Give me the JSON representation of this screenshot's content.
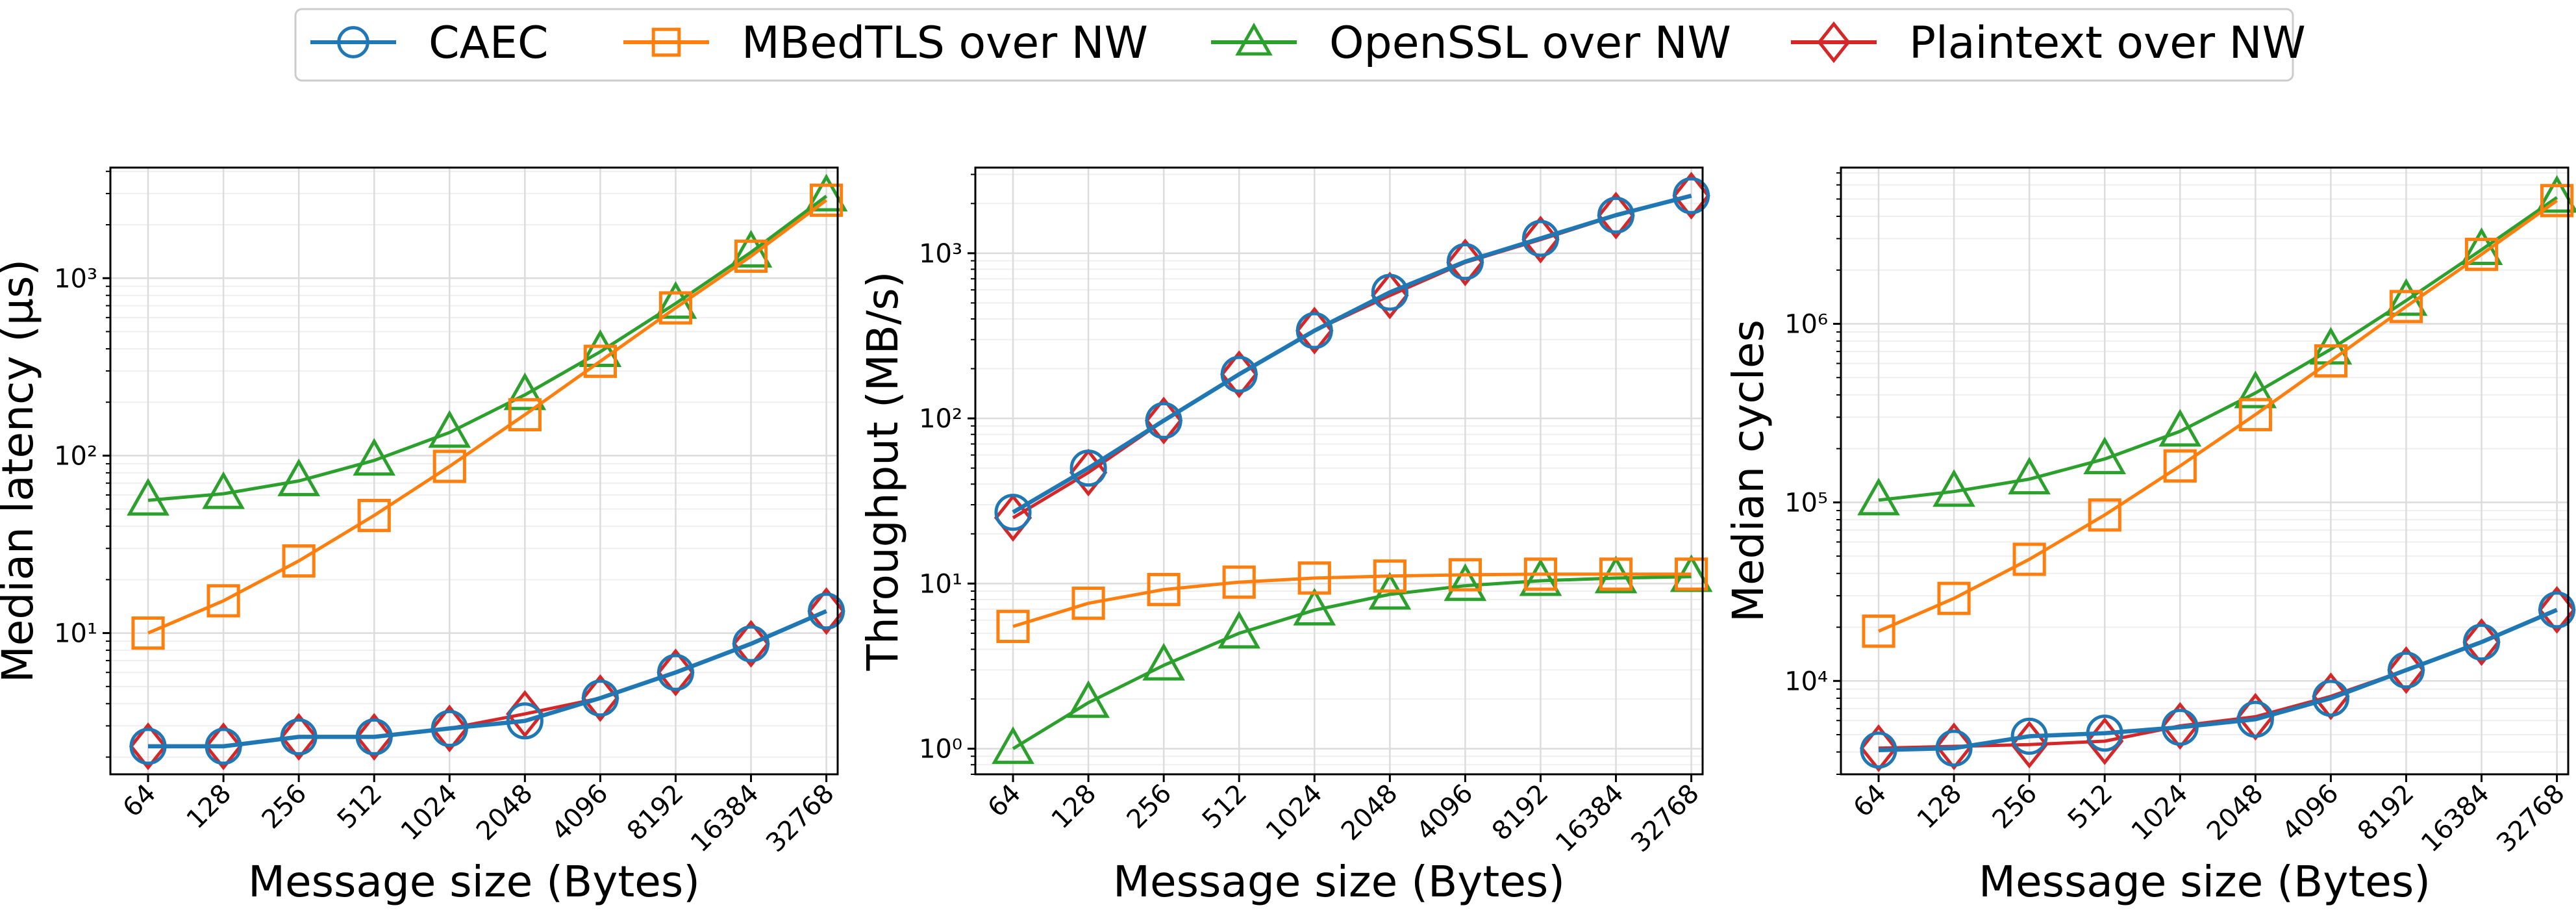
{
  "legend": {
    "entries": [
      {
        "label": "CAEC",
        "color": "#1f77b4",
        "marker": "circle"
      },
      {
        "label": "MBedTLS over NW",
        "color": "#ff7f0e",
        "marker": "square"
      },
      {
        "label": "OpenSSL over NW",
        "color": "#2ca02c",
        "marker": "triangle"
      },
      {
        "label": "Plaintext over NW",
        "color": "#d62728",
        "marker": "diamond"
      }
    ],
    "placement": "top-center"
  },
  "chart_data": [
    {
      "type": "line",
      "title": "",
      "xlabel": "Message size (Bytes)",
      "ylabel": "Median latency (µs)",
      "yscale": "log",
      "ylim": [
        1.6,
        4200
      ],
      "grid": true,
      "categories": [
        "64",
        "128",
        "256",
        "512",
        "1024",
        "2048",
        "4096",
        "8192",
        "16384",
        "32768"
      ],
      "yticks": [
        {
          "value": 10,
          "label": "10¹"
        },
        {
          "value": 100,
          "label": "10²"
        },
        {
          "value": 1000,
          "label": "10³"
        }
      ],
      "series": [
        {
          "name": "CAEC",
          "values": [
            2.3,
            2.3,
            2.6,
            2.6,
            2.9,
            3.2,
            4.3,
            6.0,
            8.7,
            13.3
          ]
        },
        {
          "name": "MBedTLS over NW",
          "values": [
            10,
            15.2,
            25.5,
            46,
            87,
            170,
            340,
            680,
            1330,
            2750
          ]
        },
        {
          "name": "OpenSSL over NW",
          "values": [
            56,
            61,
            72,
            94,
            135,
            220,
            385,
            720,
            1400,
            2900
          ]
        },
        {
          "name": "Plaintext over NW",
          "values": [
            2.3,
            2.3,
            2.6,
            2.6,
            2.9,
            3.5,
            4.3,
            6.0,
            8.7,
            13.3
          ]
        }
      ]
    },
    {
      "type": "line",
      "title": "",
      "xlabel": "Message size (Bytes)",
      "ylabel": "Throughput (MB/s)",
      "yscale": "log",
      "ylim": [
        0.7,
        3300
      ],
      "grid": true,
      "categories": [
        "64",
        "128",
        "256",
        "512",
        "1024",
        "2048",
        "4096",
        "8192",
        "16384",
        "32768"
      ],
      "yticks": [
        {
          "value": 1,
          "label": "10⁰"
        },
        {
          "value": 10,
          "label": "10¹"
        },
        {
          "value": 100,
          "label": "10²"
        },
        {
          "value": 1000,
          "label": "10³"
        }
      ],
      "series": [
        {
          "name": "CAEC",
          "values": [
            27,
            50,
            97,
            185,
            340,
            580,
            890,
            1230,
            1700,
            2230
          ]
        },
        {
          "name": "MBedTLS over NW",
          "values": [
            5.5,
            7.6,
            9.2,
            10.2,
            10.8,
            11.1,
            11.3,
            11.4,
            11.4,
            11.4
          ]
        },
        {
          "name": "OpenSSL over NW",
          "values": [
            1.0,
            1.9,
            3.2,
            5.0,
            6.9,
            8.6,
            9.7,
            10.4,
            10.8,
            11.0
          ]
        },
        {
          "name": "Plaintext over NW",
          "values": [
            25,
            47,
            97,
            185,
            340,
            555,
            880,
            1210,
            1690,
            2230
          ]
        }
      ]
    },
    {
      "type": "line",
      "title": "",
      "xlabel": "Message size (Bytes)",
      "ylabel": "Median cycles",
      "yscale": "log",
      "ylim": [
        3000,
        7500000
      ],
      "grid": true,
      "categories": [
        "64",
        "128",
        "256",
        "512",
        "1024",
        "2048",
        "4096",
        "8192",
        "16384",
        "32768"
      ],
      "yticks": [
        {
          "value": 10000,
          "label": "10⁴"
        },
        {
          "value": 100000,
          "label": "10⁵"
        },
        {
          "value": 1000000,
          "label": "10⁶"
        }
      ],
      "series": [
        {
          "name": "CAEC",
          "values": [
            4100,
            4200,
            4900,
            5100,
            5500,
            6100,
            8000,
            11500,
            16500,
            25000
          ]
        },
        {
          "name": "MBedTLS over NW",
          "values": [
            19000,
            29000,
            48000,
            85000,
            160000,
            310000,
            620000,
            1250000,
            2450000,
            4900000
          ]
        },
        {
          "name": "OpenSSL over NW",
          "values": [
            103000,
            115000,
            135000,
            175000,
            250000,
            410000,
            720000,
            1350000,
            2600000,
            5100000
          ]
        },
        {
          "name": "Plaintext over NW",
          "values": [
            4200,
            4300,
            4400,
            4600,
            5600,
            6300,
            8200,
            11500,
            16500,
            25000
          ]
        }
      ]
    }
  ]
}
